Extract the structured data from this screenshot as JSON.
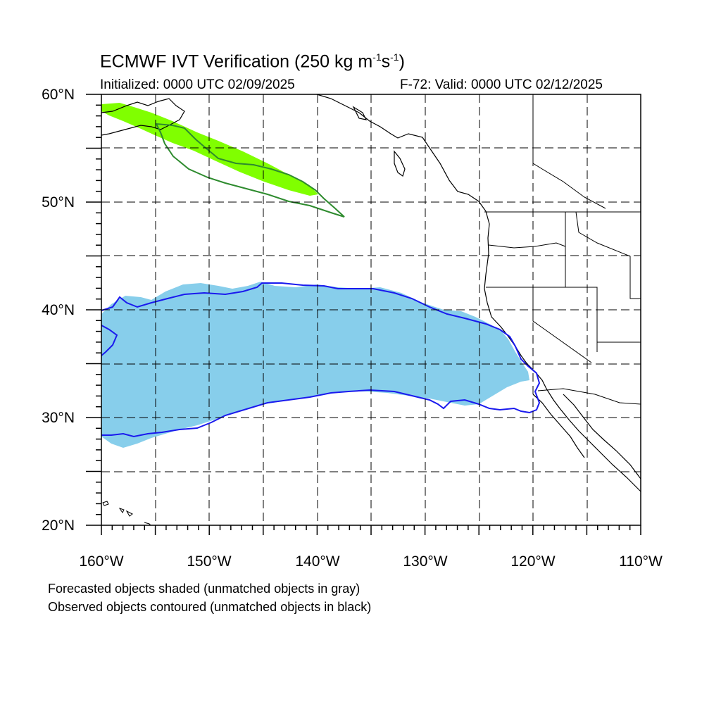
{
  "title": "ECMWF IVT Verification (250 kg m",
  "title_sup1": "-1",
  "title_mid": "s",
  "title_sup2": "-1",
  "title_end": ")",
  "initialized": "Initialized: 0000 UTC 02/09/2025",
  "valid": "F-72: Valid: 0000 UTC 02/12/2025",
  "lat_labels": [
    "60°N",
    "50°N",
    "40°N",
    "30°N",
    "20°N"
  ],
  "lon_labels": [
    "160°W",
    "150°W",
    "140°W",
    "130°W",
    "120°W",
    "110°W"
  ],
  "note_forecast": "Forecasted objects shaded (unmatched objects in gray)",
  "note_observed": "Observed objects contoured (unmatched objects in black)",
  "colors": {
    "forecast_green": "#80ff00",
    "observed_green": "#2e8b2e",
    "forecast_blue": "#87ceeb",
    "observed_blue": "#1a1aee"
  },
  "extent": {
    "lon": [
      -160,
      -110
    ],
    "lat": [
      20,
      60
    ]
  }
}
